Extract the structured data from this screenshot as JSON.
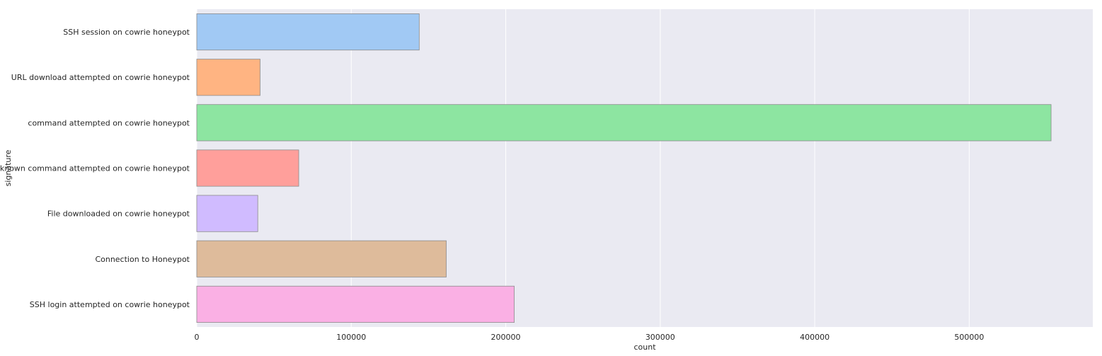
{
  "chart_data": {
    "type": "bar",
    "orientation": "horizontal",
    "categories": [
      "SSH session on cowrie honeypot",
      "URL download attempted on cowrie honeypot",
      "command attempted on cowrie honeypot",
      "unknown command attempted on cowrie honeypot",
      "File downloaded on cowrie honeypot",
      "Connection to Honeypot",
      "SSH login attempted on cowrie honeypot"
    ],
    "values": [
      144000,
      41000,
      553000,
      66000,
      39500,
      161500,
      205500
    ],
    "colors": [
      "#a1c9f4",
      "#ffb482",
      "#8de5a1",
      "#ff9f9b",
      "#d0bbff",
      "#debb9b",
      "#fab0e4"
    ],
    "xlabel": "count",
    "ylabel": "signature",
    "xlim": [
      0,
      580000
    ],
    "xticks": [
      0,
      100000,
      200000,
      300000,
      400000,
      500000
    ],
    "xtick_labels": [
      "0",
      "100000",
      "200000",
      "300000",
      "400000",
      "500000"
    ],
    "grid": true,
    "background": "#eaeaf2",
    "grid_color": "#ffffff"
  }
}
